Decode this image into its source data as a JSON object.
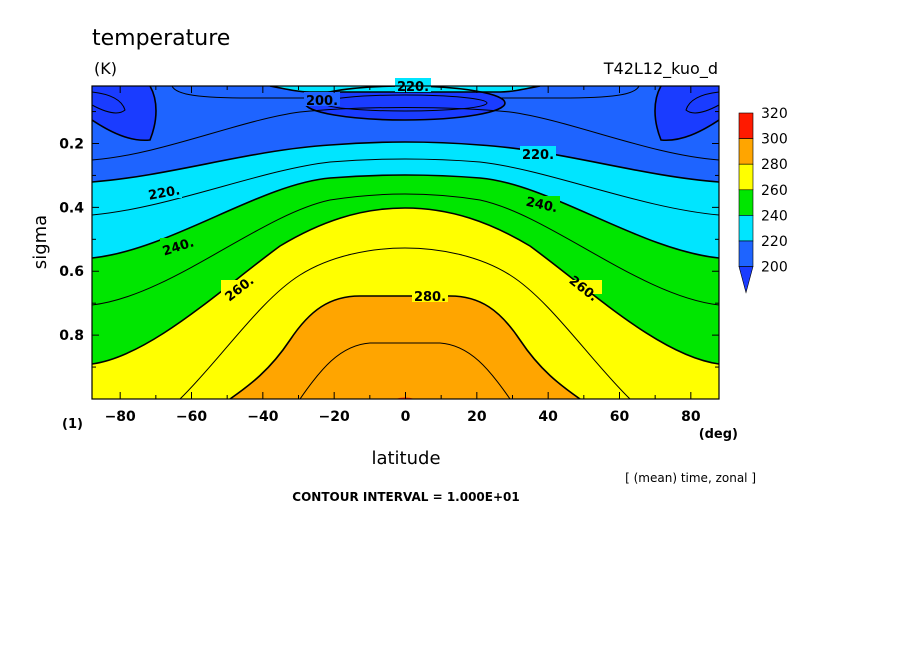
{
  "chart_data": {
    "type": "contour",
    "title": "temperature",
    "units": "(K)",
    "experiment": "T42L12_kuo_d",
    "xlabel": "latitude",
    "xunit": "(deg)",
    "ylabel": "sigma",
    "yunit": "(1)",
    "xlim": [
      -87.9,
      87.9
    ],
    "ylim": [
      0.02,
      1.0
    ],
    "y_axis_inverted": true,
    "xticks": [
      -80,
      -60,
      -40,
      -20,
      0,
      20,
      40,
      60,
      80
    ],
    "xtick_labels": [
      "−80",
      "−60",
      "−40",
      "−20",
      "0",
      "20",
      "40",
      "60",
      "80"
    ],
    "yticks": [
      0.2,
      0.4,
      0.6,
      0.8
    ],
    "ytick_labels": [
      "0.2",
      "0.4",
      "0.6",
      "0.8"
    ],
    "averaging_note": "[ (mean) time, zonal ]",
    "contour_interval_text": "CONTOUR INTERVAL = 1.000E+01",
    "contour_labels": [
      "220.",
      "200.",
      "220.",
      "220.",
      "240.",
      "240.",
      "260.",
      "280.",
      "260."
    ],
    "colorbar": {
      "levels": [
        200,
        220,
        240,
        260,
        280,
        300,
        320
      ],
      "level_labels": [
        "200",
        "220",
        "240",
        "260",
        "280",
        "300",
        "320"
      ],
      "colors": {
        "below_200": "#1a3cff",
        "200_220": "#1e64ff",
        "220_240": "#00e5ff",
        "240_260": "#00e600",
        "260_280": "#ffff00",
        "280_300": "#ffa500",
        "300_320": "#ff1a00"
      },
      "extend": "min"
    },
    "approx_field_profiles": {
      "description_units": "sigma level -> temperature (K)",
      "equator": [
        [
          0.05,
          213
        ],
        [
          0.1,
          198
        ],
        [
          0.2,
          208
        ],
        [
          0.35,
          236
        ],
        [
          0.5,
          255
        ],
        [
          0.65,
          270
        ],
        [
          0.8,
          287
        ],
        [
          0.95,
          299
        ]
      ],
      "latitude_45": [
        [
          0.05,
          216
        ],
        [
          0.1,
          212
        ],
        [
          0.2,
          219
        ],
        [
          0.35,
          233
        ],
        [
          0.5,
          248
        ],
        [
          0.65,
          262
        ],
        [
          0.8,
          272
        ],
        [
          0.95,
          280
        ]
      ],
      "latitude_85": [
        [
          0.05,
          205
        ],
        [
          0.1,
          195
        ],
        [
          0.2,
          210
        ],
        [
          0.35,
          220
        ],
        [
          0.5,
          238
        ],
        [
          0.65,
          246
        ],
        [
          0.8,
          250
        ],
        [
          0.95,
          262
        ]
      ]
    }
  }
}
